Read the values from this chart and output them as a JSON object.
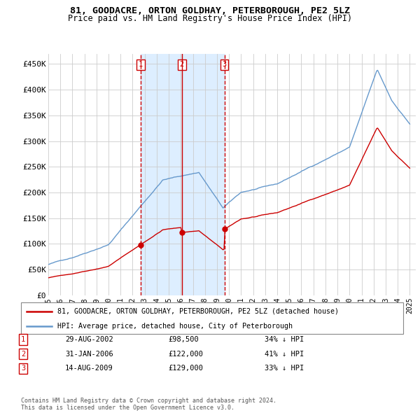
{
  "title": "81, GOODACRE, ORTON GOLDHAY, PETERBOROUGH, PE2 5LZ",
  "subtitle": "Price paid vs. HM Land Registry's House Price Index (HPI)",
  "ylim": [
    0,
    470000
  ],
  "yticks": [
    0,
    50000,
    100000,
    150000,
    200000,
    250000,
    300000,
    350000,
    400000,
    450000
  ],
  "ytick_labels": [
    "£0",
    "£50K",
    "£100K",
    "£150K",
    "£200K",
    "£250K",
    "£300K",
    "£350K",
    "£400K",
    "£450K"
  ],
  "sale_color": "#cc0000",
  "hpi_color": "#6699cc",
  "hpi_fill_color": "#ddeeff",
  "sale_dates_float": [
    2002.664,
    2006.083,
    2009.622
  ],
  "sale_prices": [
    98500,
    122000,
    129000
  ],
  "sale_labels": [
    "1",
    "2",
    "3"
  ],
  "sale_linestyles": [
    "--",
    "-",
    "--"
  ],
  "legend_sale_label": "81, GOODACRE, ORTON GOLDHAY, PETERBOROUGH, PE2 5LZ (detached house)",
  "legend_hpi_label": "HPI: Average price, detached house, City of Peterborough",
  "row_data": [
    [
      "1",
      "29-AUG-2002",
      "£98,500",
      "34% ↓ HPI"
    ],
    [
      "2",
      "31-JAN-2006",
      "£122,000",
      "41% ↓ HPI"
    ],
    [
      "3",
      "14-AUG-2009",
      "£129,000",
      "33% ↓ HPI"
    ]
  ],
  "footer": "Contains HM Land Registry data © Crown copyright and database right 2024.\nThis data is licensed under the Open Government Licence v3.0.",
  "background_color": "#ffffff",
  "grid_color": "#cccccc"
}
